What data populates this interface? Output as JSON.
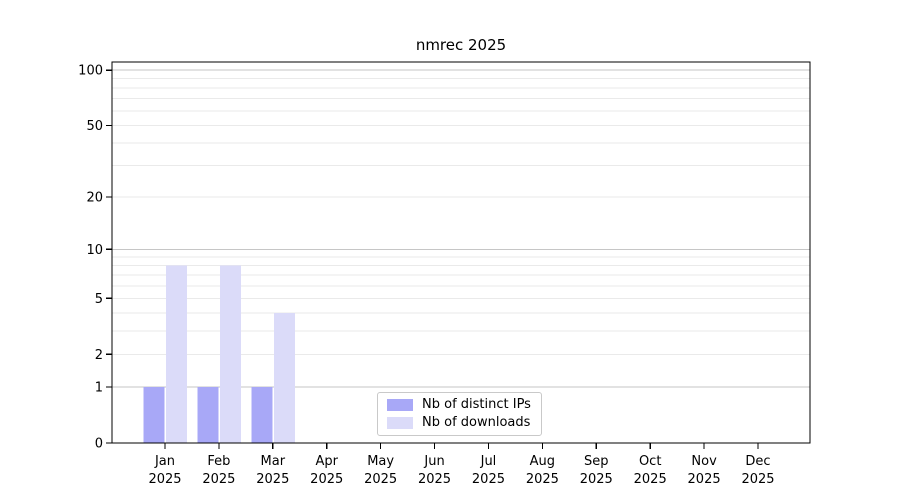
{
  "chart_data": {
    "type": "bar",
    "title": "nmrec 2025",
    "categories": [
      "Jan 2025",
      "Feb 2025",
      "Mar 2025",
      "Apr 2025",
      "May 2025",
      "Jun 2025",
      "Jul 2025",
      "Aug 2025",
      "Sep 2025",
      "Oct 2025",
      "Nov 2025",
      "Dec 2025"
    ],
    "series": [
      {
        "name": "Nb of distinct IPs",
        "color": "#a8a8f7",
        "values": [
          1,
          1,
          1,
          0,
          0,
          0,
          0,
          0,
          0,
          0,
          0,
          0
        ]
      },
      {
        "name": "Nb of downloads",
        "color": "#dbdbf9",
        "values": [
          8,
          8,
          4,
          0,
          0,
          0,
          0,
          0,
          0,
          0,
          0,
          0
        ]
      }
    ],
    "xlabel": "",
    "ylabel": "",
    "yscale": "log1p",
    "ylim": [
      0,
      111
    ],
    "yticks": [
      0,
      1,
      2,
      5,
      10,
      20,
      50,
      100
    ],
    "major_gridlines": [
      1,
      10,
      100
    ],
    "minor_gridlines": [
      2,
      3,
      4,
      5,
      6,
      7,
      8,
      9,
      20,
      30,
      40,
      50,
      60,
      70,
      80,
      90
    ],
    "grid": true,
    "legend_position": "lower center",
    "colors": {
      "major_grid": "#c6c6c6",
      "minor_grid": "#eaeaea",
      "spine": "#000000",
      "tick_text": "#000000",
      "background": "#ffffff"
    }
  }
}
